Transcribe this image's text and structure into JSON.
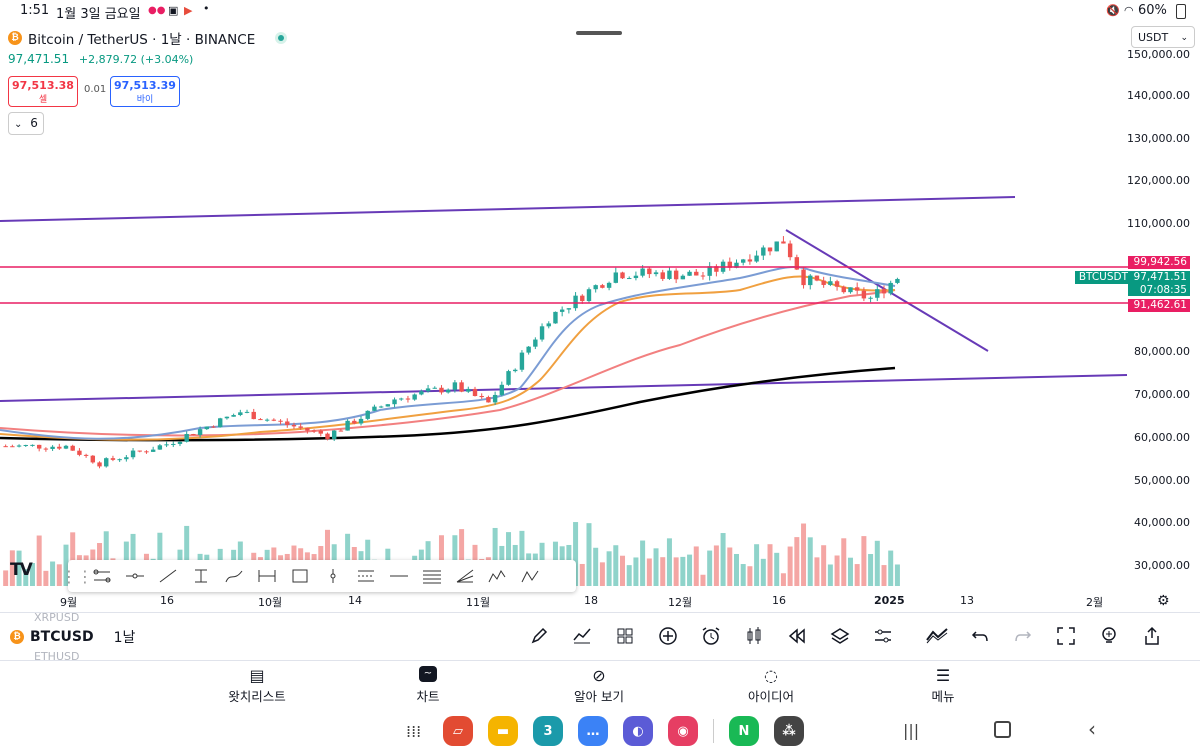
{
  "status_bar": {
    "time": "1:51",
    "date": "1월 3일 금요일",
    "battery": "60%"
  },
  "header": {
    "title": "Bitcoin / TetherUS · 1날 · BINANCE",
    "last_price": "97,471.51",
    "change": "+2,879.72 (+3.04%)",
    "sell_price": "97,513.38",
    "sell_label": "셀",
    "spread": "0.01",
    "buy_price": "97,513.39",
    "buy_label": "바이",
    "indicators_count": "6",
    "currency_select": "USDT"
  },
  "price_axis": {
    "labels": [
      "150,000.00",
      "140,000.00",
      "130,000.00",
      "120,000.00",
      "110,000.00",
      "80,000.00",
      "70,000.00",
      "60,000.00",
      "50,000.00",
      "40,000.00",
      "30,000.00"
    ],
    "resistance_tag": "99,942.56",
    "support_tag": "91,462.61",
    "current_tag": "97,471.51",
    "countdown_tag": "07:08:35",
    "symbol_tag": "BTCUSDT"
  },
  "time_axis": {
    "labels": [
      "9월",
      "16",
      "10월",
      "14",
      "11월",
      "18",
      "12월",
      "16",
      "2025",
      "13",
      "2월"
    ]
  },
  "chart_data": {
    "type": "candlestick",
    "symbol": "BTCUSDT",
    "interval": "1날",
    "ylim": [
      25000,
      152000
    ],
    "x_labels": [
      "9월",
      "16",
      "10월",
      "14",
      "11월",
      "18",
      "12월",
      "16",
      "2025",
      "13",
      "2월"
    ],
    "anchor_points": [
      {
        "date": "2024-09-01",
        "close": 58000
      },
      {
        "date": "2024-09-06",
        "close": 54000
      },
      {
        "date": "2024-09-16",
        "close": 58500
      },
      {
        "date": "2024-09-27",
        "close": 66000
      },
      {
        "date": "2024-10-10",
        "close": 60500
      },
      {
        "date": "2024-10-20",
        "close": 69000
      },
      {
        "date": "2024-10-29",
        "close": 72000
      },
      {
        "date": "2024-11-03",
        "close": 68000
      },
      {
        "date": "2024-11-12",
        "close": 88000
      },
      {
        "date": "2024-11-22",
        "close": 98500
      },
      {
        "date": "2024-12-05",
        "close": 98000
      },
      {
        "date": "2024-12-17",
        "close": 106000
      },
      {
        "date": "2024-12-20",
        "close": 97000
      },
      {
        "date": "2024-12-30",
        "close": 92500
      },
      {
        "date": "2025-01-03",
        "close": 97471.51
      }
    ],
    "horizontal_levels": [
      99942.56,
      91462.61
    ],
    "last_price": 97471.51,
    "colors": {
      "up": "#26a69a",
      "down": "#ef5350",
      "level": "#e91e63",
      "trendline": "#673ab7",
      "ma_black": "#000000",
      "ma_orange": "#f0a040",
      "ma_blue": "#7b9cd4",
      "ma_salmon": "#f28080"
    }
  },
  "bottom_bar": {
    "symbol": "BTCUSD",
    "interval": "1날",
    "peek_above": "XRPUSD",
    "peek_below": "ETHUSD"
  },
  "nav": {
    "watchlist": "왓치리스트",
    "chart": "차트",
    "explore": "알아 보기",
    "ideas": "아이디어",
    "menu": "메뉴"
  },
  "dock": {
    "calendar_day": "3",
    "naver": "N"
  }
}
